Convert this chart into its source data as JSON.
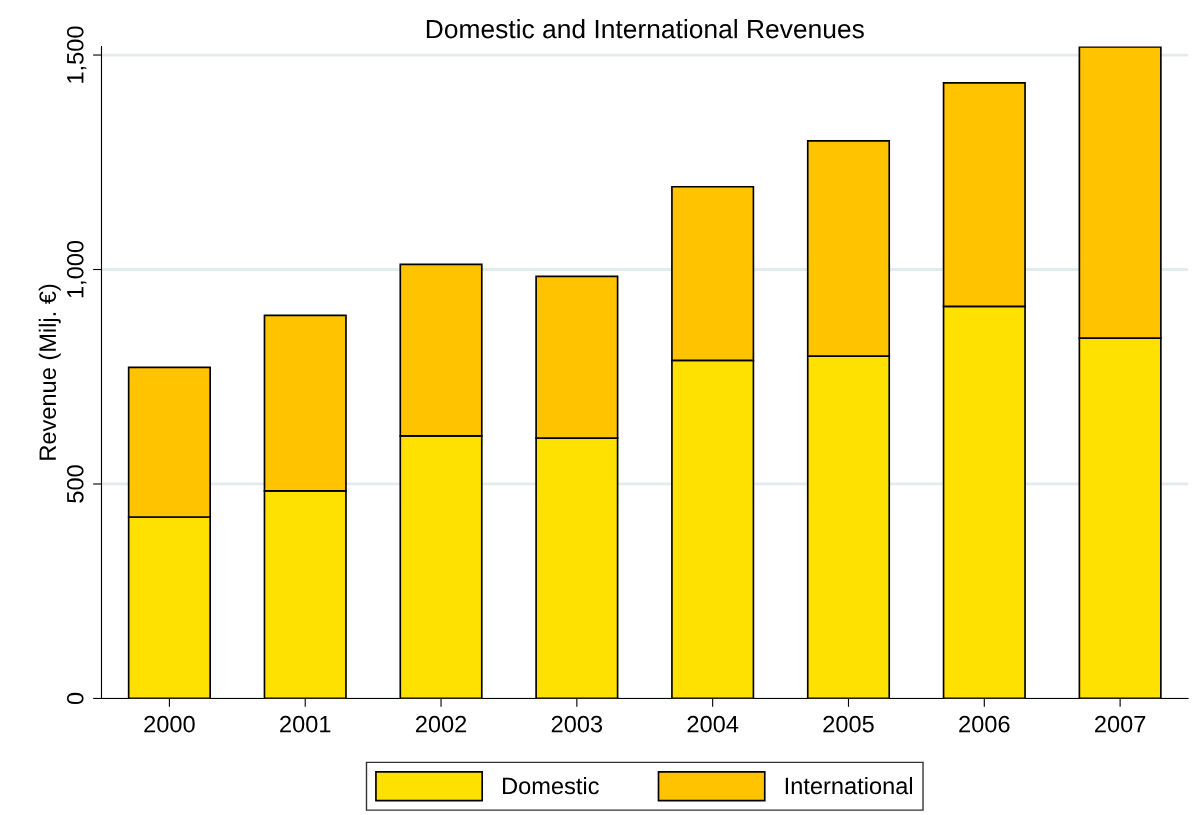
{
  "chart_data": {
    "type": "bar",
    "title": "Domestic and International Revenues",
    "ylabel": "Revenue (Milj. €)",
    "categories": [
      "2000",
      "2001",
      "2002",
      "2003",
      "2004",
      "2005",
      "2006",
      "2007"
    ],
    "series": [
      {
        "name": "Domestic",
        "color": "#ffe100",
        "values": [
          423,
          484,
          612,
          607,
          788,
          798,
          914,
          840
        ]
      },
      {
        "name": "International",
        "color": "#ffc300",
        "values": [
          349,
          409,
          400,
          377,
          405,
          502,
          521,
          679
        ]
      }
    ],
    "stacked": true,
    "ylim": [
      0,
      1520
    ],
    "yticks": [
      0,
      500,
      {
        "value": 1000,
        "label": "1,000"
      },
      {
        "value": 1500,
        "label": "1,500"
      }
    ],
    "grid": "y",
    "legend": "bottom"
  }
}
